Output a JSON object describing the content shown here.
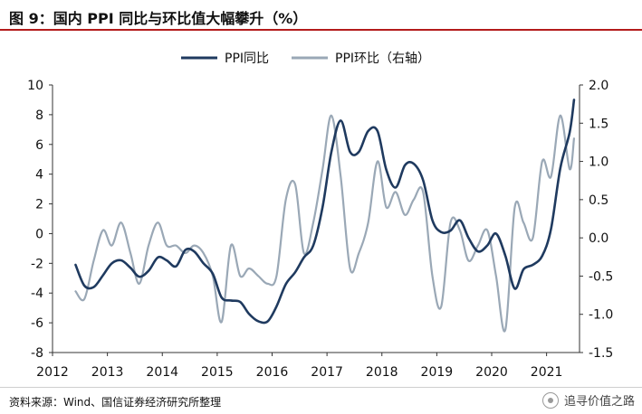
{
  "title": "图 9：国内 PPI 同比与环比值大幅攀升（%）",
  "footer": {
    "source": "资料来源：Wind、国信证券经济研究所整理",
    "watermark_text": "追寻价值之路",
    "watermark_icon": "wechat-icon"
  },
  "chart_data": {
    "type": "line",
    "title": "",
    "xlabel": "",
    "ylabel": "",
    "x_ticks": [
      "2012",
      "2013",
      "2014",
      "2015",
      "2016",
      "2017",
      "2018",
      "2019",
      "2020",
      "2021"
    ],
    "x_range": [
      2012.0,
      2021.6
    ],
    "y_left": {
      "ticks": [
        10,
        8,
        6,
        4,
        2,
        0,
        -2,
        -4,
        -6,
        -8
      ],
      "ylim": [
        -8,
        10
      ]
    },
    "y_right": {
      "ticks": [
        "2.0",
        "1.5",
        "1.0",
        "0.5",
        "0.0",
        "-0.5",
        "-1.0",
        "-1.5"
      ],
      "ylim": [
        -1.5,
        2.0
      ]
    },
    "legend": {
      "placement": "top-center"
    },
    "series": [
      {
        "name": "PPI同比",
        "axis": "left",
        "color": "#1f3a5f",
        "points": [
          [
            2012.42,
            -2.1
          ],
          [
            2012.58,
            -3.5
          ],
          [
            2012.75,
            -3.6
          ],
          [
            2012.92,
            -2.8
          ],
          [
            2013.08,
            -2.0
          ],
          [
            2013.25,
            -1.8
          ],
          [
            2013.42,
            -2.3
          ],
          [
            2013.58,
            -2.9
          ],
          [
            2013.75,
            -2.5
          ],
          [
            2013.92,
            -1.6
          ],
          [
            2014.08,
            -1.8
          ],
          [
            2014.25,
            -2.2
          ],
          [
            2014.42,
            -1.1
          ],
          [
            2014.58,
            -1.2
          ],
          [
            2014.75,
            -2.0
          ],
          [
            2014.92,
            -2.7
          ],
          [
            2015.08,
            -4.3
          ],
          [
            2015.25,
            -4.5
          ],
          [
            2015.42,
            -4.6
          ],
          [
            2015.58,
            -5.4
          ],
          [
            2015.75,
            -5.9
          ],
          [
            2015.92,
            -5.9
          ],
          [
            2016.08,
            -4.9
          ],
          [
            2016.25,
            -3.4
          ],
          [
            2016.42,
            -2.6
          ],
          [
            2016.58,
            -1.6
          ],
          [
            2016.75,
            -0.8
          ],
          [
            2016.92,
            1.8
          ],
          [
            2017.08,
            5.5
          ],
          [
            2017.25,
            7.6
          ],
          [
            2017.42,
            5.5
          ],
          [
            2017.58,
            5.5
          ],
          [
            2017.75,
            6.9
          ],
          [
            2017.92,
            6.9
          ],
          [
            2018.08,
            4.3
          ],
          [
            2018.25,
            3.1
          ],
          [
            2018.42,
            4.6
          ],
          [
            2018.58,
            4.7
          ],
          [
            2018.75,
            3.6
          ],
          [
            2018.92,
            0.9
          ],
          [
            2019.08,
            0.1
          ],
          [
            2019.25,
            0.2
          ],
          [
            2019.42,
            0.9
          ],
          [
            2019.58,
            -0.3
          ],
          [
            2019.75,
            -1.2
          ],
          [
            2019.92,
            -0.8
          ],
          [
            2020.08,
            0.0
          ],
          [
            2020.25,
            -1.5
          ],
          [
            2020.42,
            -3.7
          ],
          [
            2020.58,
            -2.4
          ],
          [
            2020.75,
            -2.1
          ],
          [
            2020.92,
            -1.5
          ],
          [
            2021.08,
            0.3
          ],
          [
            2021.25,
            4.4
          ],
          [
            2021.42,
            6.8
          ],
          [
            2021.5,
            9.0
          ]
        ]
      },
      {
        "name": "PPI环比（右轴）",
        "axis": "right",
        "color": "#9aa8b6",
        "points": [
          [
            2012.42,
            -0.7
          ],
          [
            2012.58,
            -0.8
          ],
          [
            2012.75,
            -0.3
          ],
          [
            2012.92,
            0.1
          ],
          [
            2013.08,
            -0.1
          ],
          [
            2013.25,
            0.2
          ],
          [
            2013.42,
            -0.2
          ],
          [
            2013.58,
            -0.6
          ],
          [
            2013.75,
            -0.1
          ],
          [
            2013.92,
            0.2
          ],
          [
            2014.08,
            -0.1
          ],
          [
            2014.25,
            -0.1
          ],
          [
            2014.42,
            -0.2
          ],
          [
            2014.58,
            -0.1
          ],
          [
            2014.75,
            -0.2
          ],
          [
            2014.92,
            -0.5
          ],
          [
            2015.08,
            -1.1
          ],
          [
            2015.25,
            -0.1
          ],
          [
            2015.42,
            -0.5
          ],
          [
            2015.58,
            -0.4
          ],
          [
            2015.75,
            -0.5
          ],
          [
            2015.92,
            -0.6
          ],
          [
            2016.08,
            -0.5
          ],
          [
            2016.25,
            0.5
          ],
          [
            2016.42,
            0.7
          ],
          [
            2016.58,
            -0.2
          ],
          [
            2016.75,
            0.2
          ],
          [
            2016.92,
            0.9
          ],
          [
            2017.08,
            1.6
          ],
          [
            2017.25,
            0.8
          ],
          [
            2017.42,
            -0.4
          ],
          [
            2017.58,
            -0.2
          ],
          [
            2017.75,
            0.2
          ],
          [
            2017.92,
            1.0
          ],
          [
            2018.08,
            0.4
          ],
          [
            2018.25,
            0.6
          ],
          [
            2018.42,
            0.3
          ],
          [
            2018.58,
            0.5
          ],
          [
            2018.75,
            0.6
          ],
          [
            2018.92,
            -0.5
          ],
          [
            2019.08,
            -0.9
          ],
          [
            2019.25,
            0.2
          ],
          [
            2019.42,
            0.1
          ],
          [
            2019.58,
            -0.3
          ],
          [
            2019.75,
            -0.1
          ],
          [
            2019.92,
            0.1
          ],
          [
            2020.08,
            -0.5
          ],
          [
            2020.25,
            -1.2
          ],
          [
            2020.42,
            0.4
          ],
          [
            2020.58,
            0.2
          ],
          [
            2020.75,
            0.0
          ],
          [
            2020.92,
            1.0
          ],
          [
            2021.08,
            0.8
          ],
          [
            2021.25,
            1.6
          ],
          [
            2021.42,
            0.9
          ],
          [
            2021.5,
            1.3
          ]
        ]
      }
    ]
  }
}
